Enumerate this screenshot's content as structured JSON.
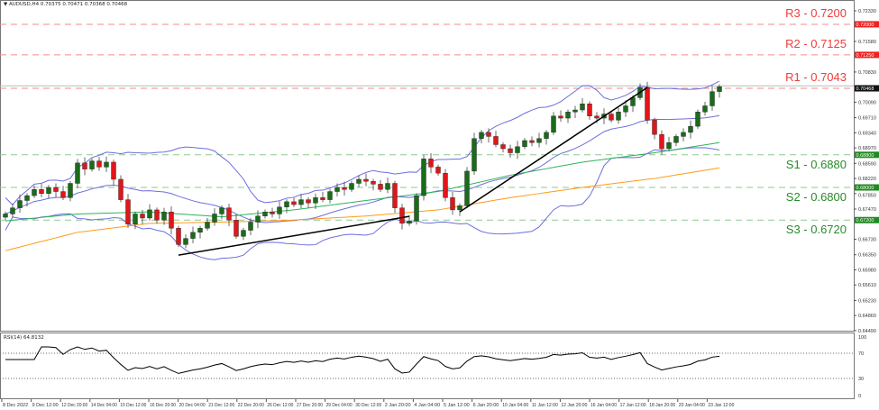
{
  "header": {
    "symbol": "AUDUSD,H4",
    "ohlc": "0.70375 0.70471 0.70368 0.70468"
  },
  "colors": {
    "bull": "#1a6b1a",
    "bear": "#e0161a",
    "bollinger": "#6d6de0",
    "ma_fast": "#2fb35a",
    "ma_slow": "#ff9a1a",
    "resistance": "#f03c3c",
    "support": "#2a8a2a",
    "trendline": "#000000"
  },
  "levels": [
    {
      "label": "R3 - 0.7200",
      "price": 0.72,
      "axis_label": "0.72000",
      "type": "resistance"
    },
    {
      "label": "R2 - 0.7125",
      "price": 0.7125,
      "axis_label": "0.71250",
      "type": "resistance"
    },
    {
      "label": "R1 - 0.7043",
      "price": 0.7043,
      "axis_label": "0.70468",
      "type": "resistance"
    },
    {
      "label": "S1 - 0.6880",
      "price": 0.688,
      "axis_label": "0.68800",
      "type": "support"
    },
    {
      "label": "S2 - 0.6800",
      "price": 0.68,
      "axis_label": "0.68000",
      "type": "support"
    },
    {
      "label": "S3 - 0.6720",
      "price": 0.672,
      "axis_label": "0.67200",
      "type": "support"
    }
  ],
  "price_axis": [
    "0.72330",
    "0.71580",
    "0.70830",
    "0.70090",
    "0.69710",
    "0.69340",
    "0.68970",
    "0.68590",
    "0.68220",
    "0.67850",
    "0.67470",
    "0.66730",
    "0.66350",
    "0.65980",
    "0.65610",
    "0.65230",
    "0.64860",
    "0.64490"
  ],
  "time_axis": [
    "8 Dec 2022",
    "9 Dec 12:00",
    "12 Dec 20:00",
    "14 Dec 04:00",
    "15 Dec 12:00",
    "16 Dec 20:00",
    "20 Dec 04:00",
    "21 Dec 12:00",
    "22 Dec 20:00",
    "26 Dec 12:00",
    "27 Dec 20:00",
    "29 Dec 04:00",
    "30 Dec 12:00",
    "2 Jan 20:00",
    "4 Jan 04:00",
    "5 Jan 12:00",
    "6 Jan 20:00",
    "10 Jan 04:00",
    "11 Jan 12:00",
    "12 Jan 20:00",
    "16 Jan 04:00",
    "17 Jan 12:00",
    "18 Jan 20:00",
    "20 Jan 04:00",
    "23 Jan 12:00"
  ],
  "rsi": {
    "label": "RSI(14) 64.8132",
    "axis": [
      "100",
      "70",
      "30",
      "0"
    ]
  },
  "chart_data": {
    "type": "candlestick",
    "closes": [
      0.6735,
      0.675,
      0.6768,
      0.678,
      0.6795,
      0.6785,
      0.68,
      0.679,
      0.6775,
      0.681,
      0.686,
      0.6845,
      0.6865,
      0.685,
      0.6862,
      0.682,
      0.677,
      0.671,
      0.6735,
      0.6725,
      0.6745,
      0.672,
      0.674,
      0.67,
      0.666,
      0.6675,
      0.669,
      0.67,
      0.6715,
      0.6735,
      0.675,
      0.672,
      0.668,
      0.6695,
      0.6715,
      0.673,
      0.674,
      0.6735,
      0.6752,
      0.6765,
      0.6758,
      0.677,
      0.6762,
      0.6775,
      0.677,
      0.679,
      0.68,
      0.6795,
      0.681,
      0.682,
      0.6815,
      0.6808,
      0.6795,
      0.681,
      0.675,
      0.6712,
      0.6718,
      0.678,
      0.687,
      0.685,
      0.6835,
      0.6775,
      0.6745,
      0.6755,
      0.684,
      0.692,
      0.6935,
      0.6925,
      0.6905,
      0.6895,
      0.6885,
      0.69,
      0.6915,
      0.691,
      0.692,
      0.6935,
      0.6975,
      0.697,
      0.6985,
      0.699,
      0.7005,
      0.6975,
      0.697,
      0.698,
      0.6965,
      0.6985,
      0.7,
      0.702,
      0.7045,
      0.6965,
      0.693,
      0.6895,
      0.691,
      0.6925,
      0.6935,
      0.695,
      0.6985,
      0.7,
      0.7035,
      0.70468
    ],
    "ma_fast_every10": [
      0.6718,
      0.6735,
      0.674,
      0.6728,
      0.6745,
      0.6768,
      0.679,
      0.683,
      0.6862,
      0.6885,
      0.691
    ],
    "ma_slow_every10": [
      0.6645,
      0.669,
      0.6712,
      0.6715,
      0.672,
      0.673,
      0.6745,
      0.6775,
      0.68,
      0.6822,
      0.6848
    ],
    "trendlines": [
      {
        "from": [
          24,
          0.6634
        ],
        "to": [
          56,
          0.6729
        ]
      },
      {
        "from": [
          63,
          0.674
        ],
        "to": [
          89,
          0.7045
        ]
      }
    ],
    "ylim": [
      0.6449,
      0.7233
    ]
  }
}
